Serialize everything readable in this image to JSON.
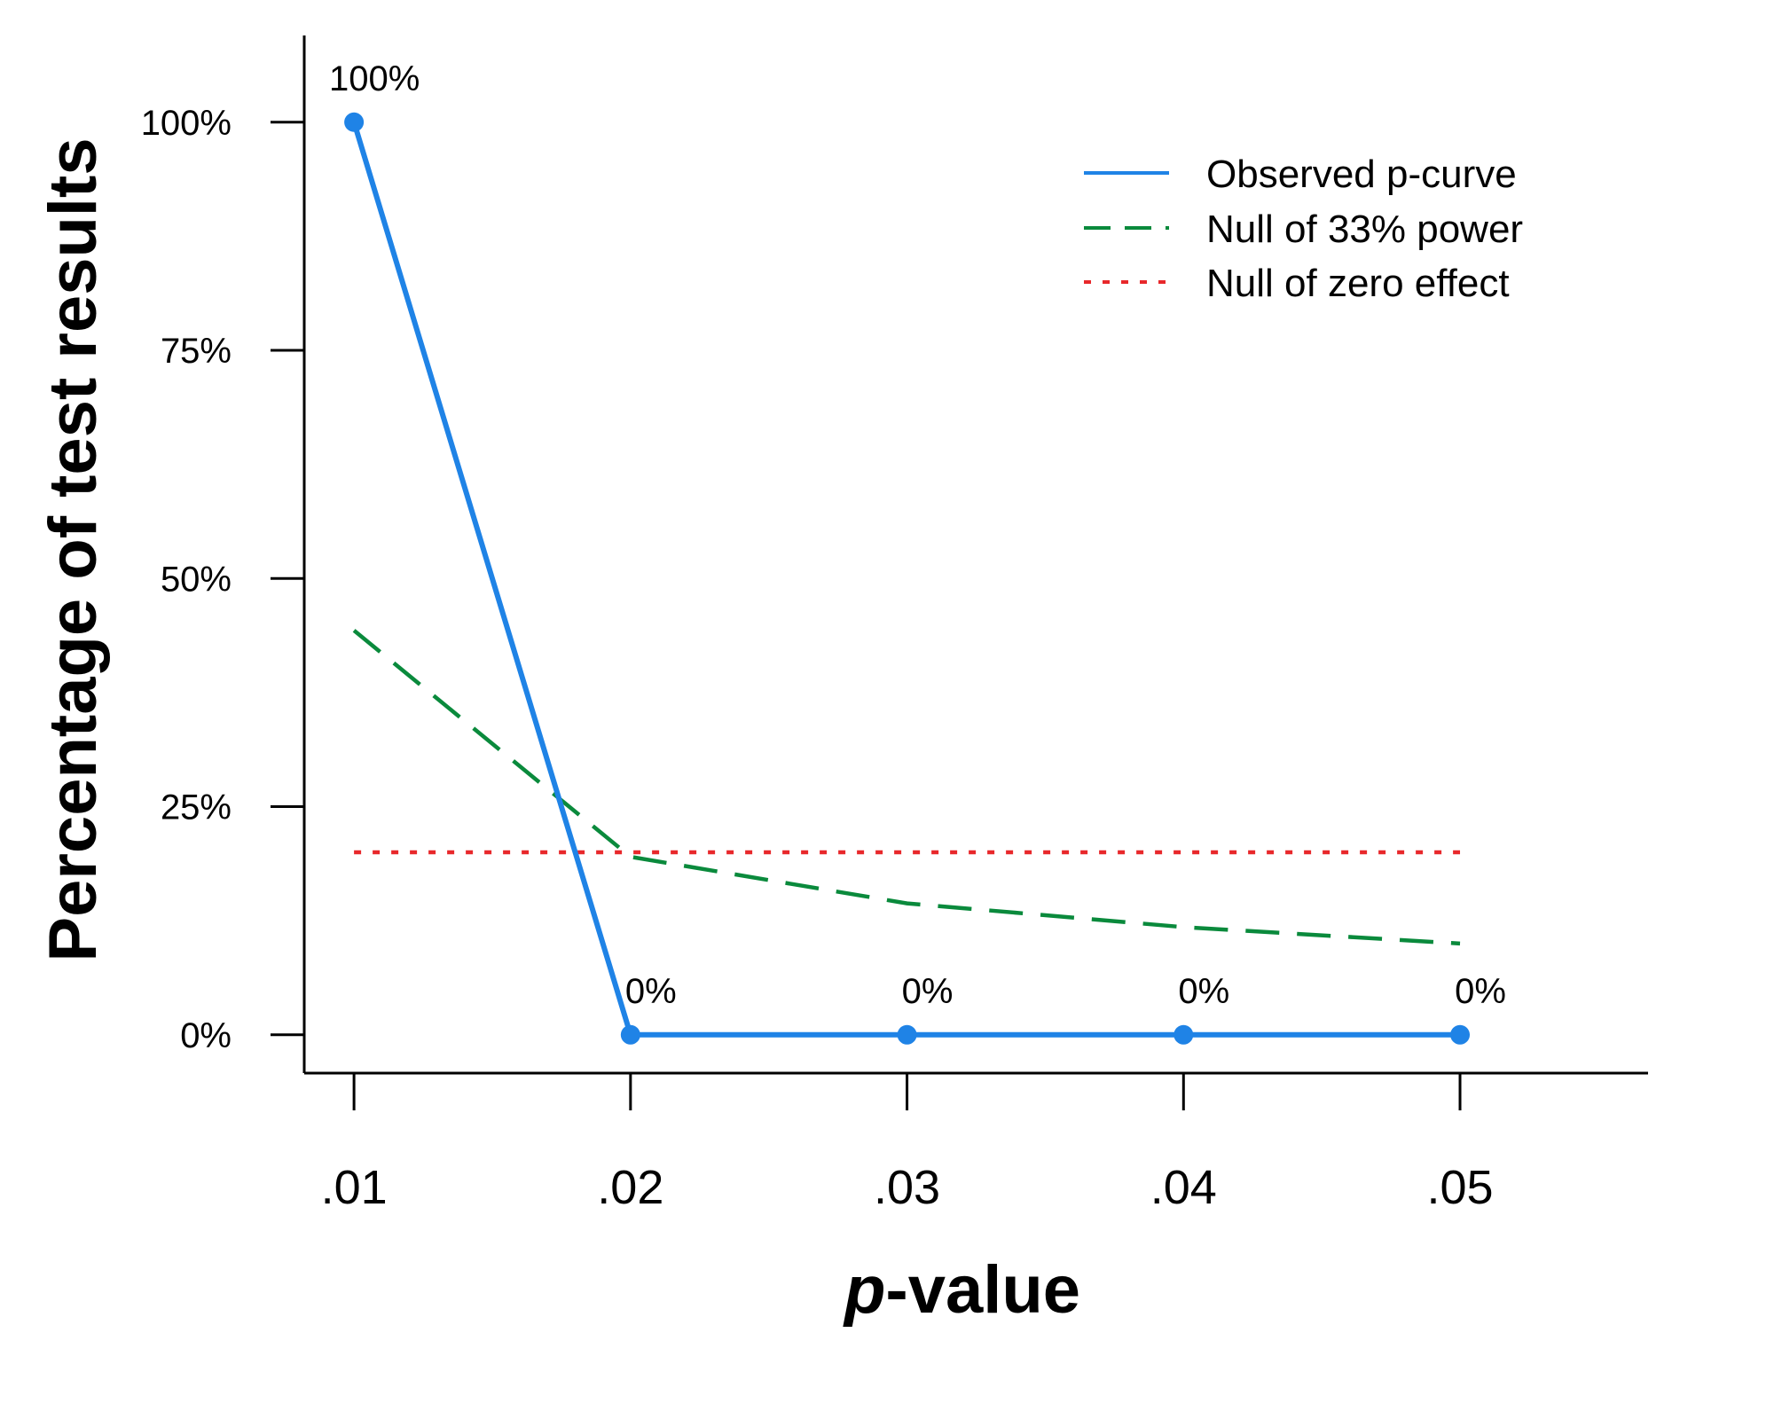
{
  "chart_data": {
    "type": "line",
    "xlabel_prefix": "p",
    "xlabel_suffix": "-value",
    "ylabel": "Percentage of test results",
    "categories": [
      ".01",
      ".02",
      ".03",
      ".04",
      ".05"
    ],
    "x": [
      0.01,
      0.02,
      0.03,
      0.04,
      0.05
    ],
    "xlim": [
      0.0082,
      0.0568
    ],
    "ylim": [
      -4.2,
      109.5
    ],
    "y_ticks": [
      {
        "value": 0,
        "label": "0%"
      },
      {
        "value": 25,
        "label": "25%"
      },
      {
        "value": 50,
        "label": "50%"
      },
      {
        "value": 75,
        "label": "75%"
      },
      {
        "value": 100,
        "label": "100%"
      }
    ],
    "series": [
      {
        "name": "Observed p-curve",
        "color": "#1f83e6",
        "style": "solid",
        "values": [
          100,
          0,
          0,
          0,
          0
        ],
        "point_labels": [
          "100%",
          "0%",
          "0%",
          "0%",
          "0%"
        ]
      },
      {
        "name": "Null of 33% power",
        "color": "#0a8a3c",
        "style": "dashed",
        "values": [
          44.3,
          19.5,
          14.4,
          11.8,
          10.0
        ]
      },
      {
        "name": "Null of zero effect",
        "color": "#e8282b",
        "style": "dotted",
        "values": [
          20,
          20,
          20,
          20,
          20
        ]
      }
    ],
    "legend_position": "top-right",
    "grid": false
  }
}
